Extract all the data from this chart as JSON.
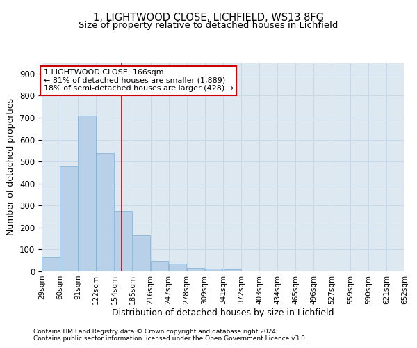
{
  "title": "1, LIGHTWOOD CLOSE, LICHFIELD, WS13 8FG",
  "subtitle": "Size of property relative to detached houses in Lichfield",
  "xlabel": "Distribution of detached houses by size in Lichfield",
  "ylabel": "Number of detached properties",
  "footer_line1": "Contains HM Land Registry data © Crown copyright and database right 2024.",
  "footer_line2": "Contains public sector information licensed under the Open Government Licence v3.0.",
  "bar_edges": [
    29,
    60,
    91,
    122,
    154,
    185,
    216,
    247,
    278,
    309,
    341,
    372,
    403,
    434,
    465,
    496,
    527,
    559,
    590,
    621,
    652
  ],
  "bar_heights": [
    65,
    478,
    710,
    538,
    275,
    165,
    48,
    35,
    15,
    12,
    8,
    0,
    0,
    0,
    0,
    0,
    0,
    0,
    0,
    0
  ],
  "bar_color": "#b8d0e8",
  "bar_edgecolor": "#7aafd4",
  "grid_color": "#c8d8e8",
  "ax_bg_color": "#dde8f0",
  "vline_x": 166,
  "vline_color": "#cc0000",
  "annotation_line1": "1 LIGHTWOOD CLOSE: 166sqm",
  "annotation_line2": "← 81% of detached houses are smaller (1,889)",
  "annotation_line3": "18% of semi-detached houses are larger (428) →",
  "annotation_box_edgecolor": "#cc0000",
  "ylim": [
    0,
    950
  ],
  "yticks": [
    0,
    100,
    200,
    300,
    400,
    500,
    600,
    700,
    800,
    900
  ],
  "background_color": "#ffffff",
  "title_fontsize": 10.5,
  "subtitle_fontsize": 9.5,
  "axis_label_fontsize": 9,
  "tick_label_fontsize": 7.5,
  "annot_fontsize": 8
}
